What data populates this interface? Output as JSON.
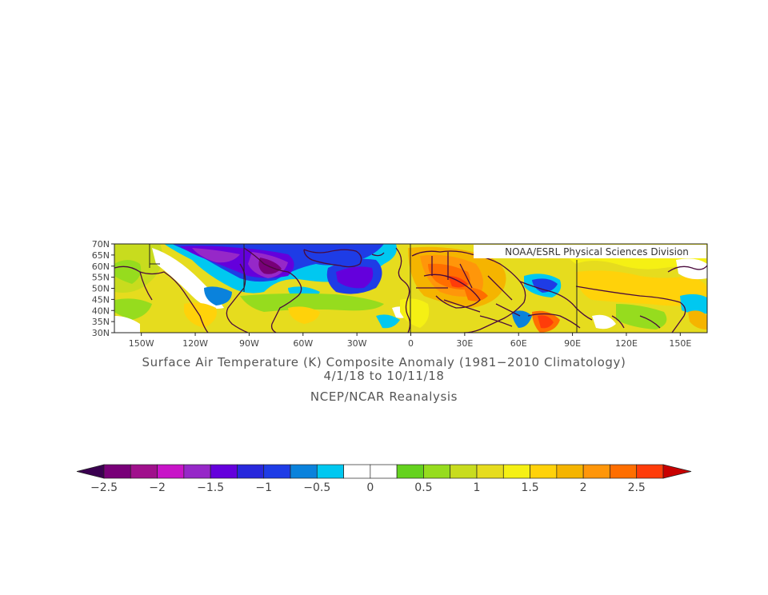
{
  "watermark": "NOAA/ESRL Physical Sciences Division",
  "title": "Surface Air Temperature (K) Composite Anomaly (1981−2010 Climatology)",
  "dates": "4/1/18  to 10/11/18",
  "source": "NCEP/NCAR Reanalysis",
  "map": {
    "lat_ticks": [
      "70N",
      "65N",
      "60N",
      "55N",
      "50N",
      "45N",
      "40N",
      "35N",
      "30N"
    ],
    "lon_ticks": [
      "150W",
      "120W",
      "90W",
      "60W",
      "30W",
      "0",
      "30E",
      "60E",
      "90E",
      "120E",
      "150E"
    ],
    "lat_range": [
      30,
      70
    ],
    "lon_range": [
      -165,
      165
    ],
    "field": "Surface Air Temperature anomaly (K)"
  },
  "colorbar": {
    "labels": [
      "−2.5",
      "−2",
      "−1.5",
      "−1",
      "−0.5",
      "0",
      "0.5",
      "1",
      "1.5",
      "2",
      "2.5"
    ],
    "colors": [
      "#3a0050",
      "#780078",
      "#a0108c",
      "#c814c8",
      "#9628c8",
      "#6400dc",
      "#2828dc",
      "#1e3ce6",
      "#0a82dc",
      "#00c8f0",
      "#ffffff",
      "#ffffff",
      "#64d21e",
      "#96dc1e",
      "#c8dc1e",
      "#e6dc1e",
      "#f5f014",
      "#ffd20a",
      "#f5b400",
      "#ff960a",
      "#ff6e00",
      "#ff3c0a",
      "#c80000"
    ]
  }
}
